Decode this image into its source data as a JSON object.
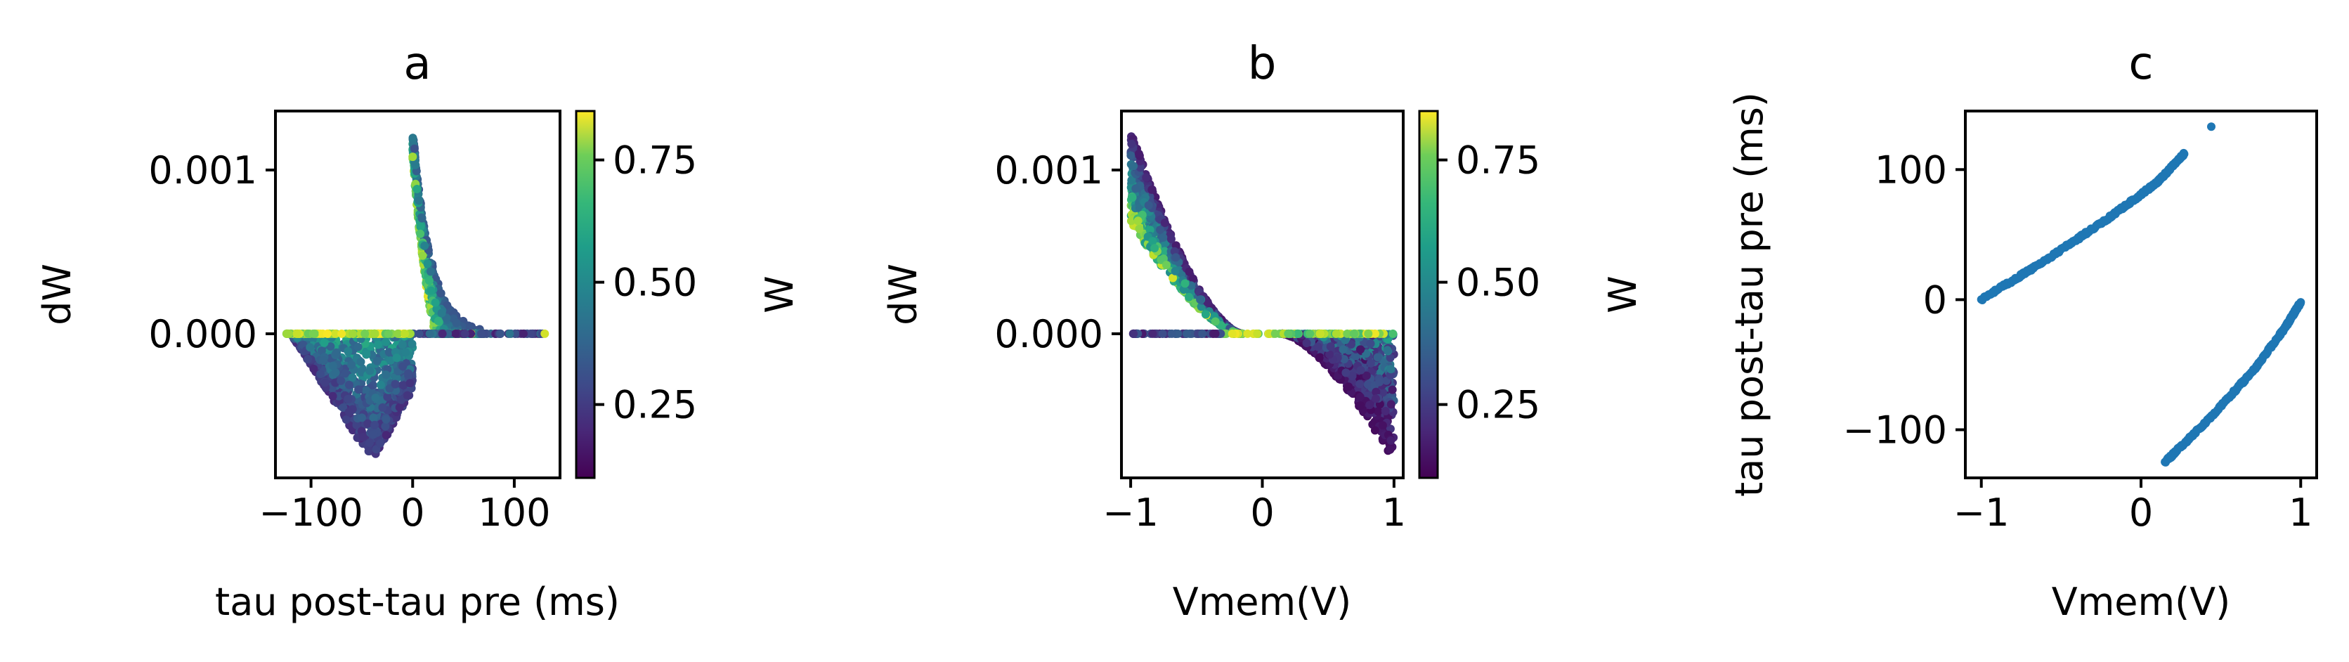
{
  "chart_data": [
    {
      "type": "scatter",
      "title": "a",
      "xlabel": "tau post-tau pre (ms)",
      "ylabel": "dW",
      "xlim": [
        -135,
        145
      ],
      "ylim": [
        -0.00088,
        0.00136
      ],
      "xticks": [
        {
          "value": -100,
          "label": "−100"
        },
        {
          "value": 0,
          "label": "0"
        },
        {
          "value": 100,
          "label": "100"
        }
      ],
      "yticks": [
        {
          "value": 0.001,
          "label": "0.001"
        },
        {
          "value": 0.0,
          "label": "0.000"
        }
      ],
      "colorbar": {
        "label": "W",
        "colormap": "viridis",
        "range": [
          0.1,
          0.85
        ],
        "ticks": [
          {
            "value": 0.25,
            "label": "0.25"
          },
          {
            "value": 0.5,
            "label": "0.50"
          },
          {
            "value": 0.75,
            "label": "0.75"
          }
        ]
      },
      "series": [
        {
          "region": "potentiation band",
          "x_range": [
            0,
            70
          ],
          "dW_max": 0.00125,
          "W_range": [
            0.1,
            0.85
          ]
        },
        {
          "region": "zero line",
          "x_range": [
            -125,
            130
          ],
          "dW": 0.0
        },
        {
          "region": "depression triangle",
          "x_range": [
            -120,
            0
          ],
          "dW_min": -0.00078,
          "W_range": [
            0.1,
            0.6
          ]
        },
        {
          "region": "outlier",
          "x": 130,
          "dW": 0.0,
          "W": 0.8
        }
      ],
      "grid": false
    },
    {
      "type": "scatter",
      "title": "b",
      "xlabel": "Vmem(V)",
      "ylabel": "dW",
      "xlim": [
        -1.07,
        1.07
      ],
      "ylim": [
        -0.00088,
        0.00136
      ],
      "xticks": [
        {
          "value": -1,
          "label": "−1"
        },
        {
          "value": 0,
          "label": "0"
        },
        {
          "value": 1,
          "label": "1"
        }
      ],
      "yticks": [
        {
          "value": 0.001,
          "label": "0.001"
        },
        {
          "value": 0.0,
          "label": "0.000"
        }
      ],
      "colorbar": {
        "label": "W",
        "colormap": "viridis",
        "range": [
          0.1,
          0.85
        ],
        "ticks": [
          {
            "value": 0.25,
            "label": "0.25"
          },
          {
            "value": 0.5,
            "label": "0.50"
          },
          {
            "value": 0.75,
            "label": "0.75"
          }
        ]
      },
      "series": [
        {
          "region": "potentiation band",
          "x_range": [
            -1,
            -0.2
          ],
          "dW_max": 0.00125
        },
        {
          "region": "zero line",
          "x_range": [
            -1,
            1
          ],
          "dW": 0.0
        },
        {
          "region": "depression region",
          "x_range": [
            0.15,
            1
          ],
          "dW_min": -0.00078
        }
      ],
      "grid": false
    },
    {
      "type": "scatter",
      "title": "c",
      "xlabel": "Vmem(V)",
      "ylabel": "tau post-tau pre (ms)",
      "xlim": [
        -1.1,
        1.1
      ],
      "ylim": [
        -137,
        145
      ],
      "xticks": [
        {
          "value": -1,
          "label": "−1"
        },
        {
          "value": 0,
          "label": "0"
        },
        {
          "value": 1,
          "label": "1"
        }
      ],
      "yticks": [
        {
          "value": 100,
          "label": "100"
        },
        {
          "value": 0,
          "label": "0"
        },
        {
          "value": -100,
          "label": "−100"
        }
      ],
      "color": "#1f77b4",
      "series": [
        {
          "region": "upper branch",
          "points": [
            [
              -1.0,
              0
            ],
            [
              -0.6,
              30
            ],
            [
              -0.2,
              63
            ],
            [
              0.1,
              90
            ],
            [
              0.27,
              112
            ]
          ]
        },
        {
          "region": "lower branch",
          "points": [
            [
              0.15,
              -125
            ],
            [
              0.4,
              -95
            ],
            [
              0.7,
              -55
            ],
            [
              0.9,
              -22
            ],
            [
              1.0,
              -2
            ]
          ]
        },
        {
          "region": "outlier",
          "points": [
            [
              0.44,
              133
            ]
          ]
        }
      ],
      "grid": false
    }
  ]
}
